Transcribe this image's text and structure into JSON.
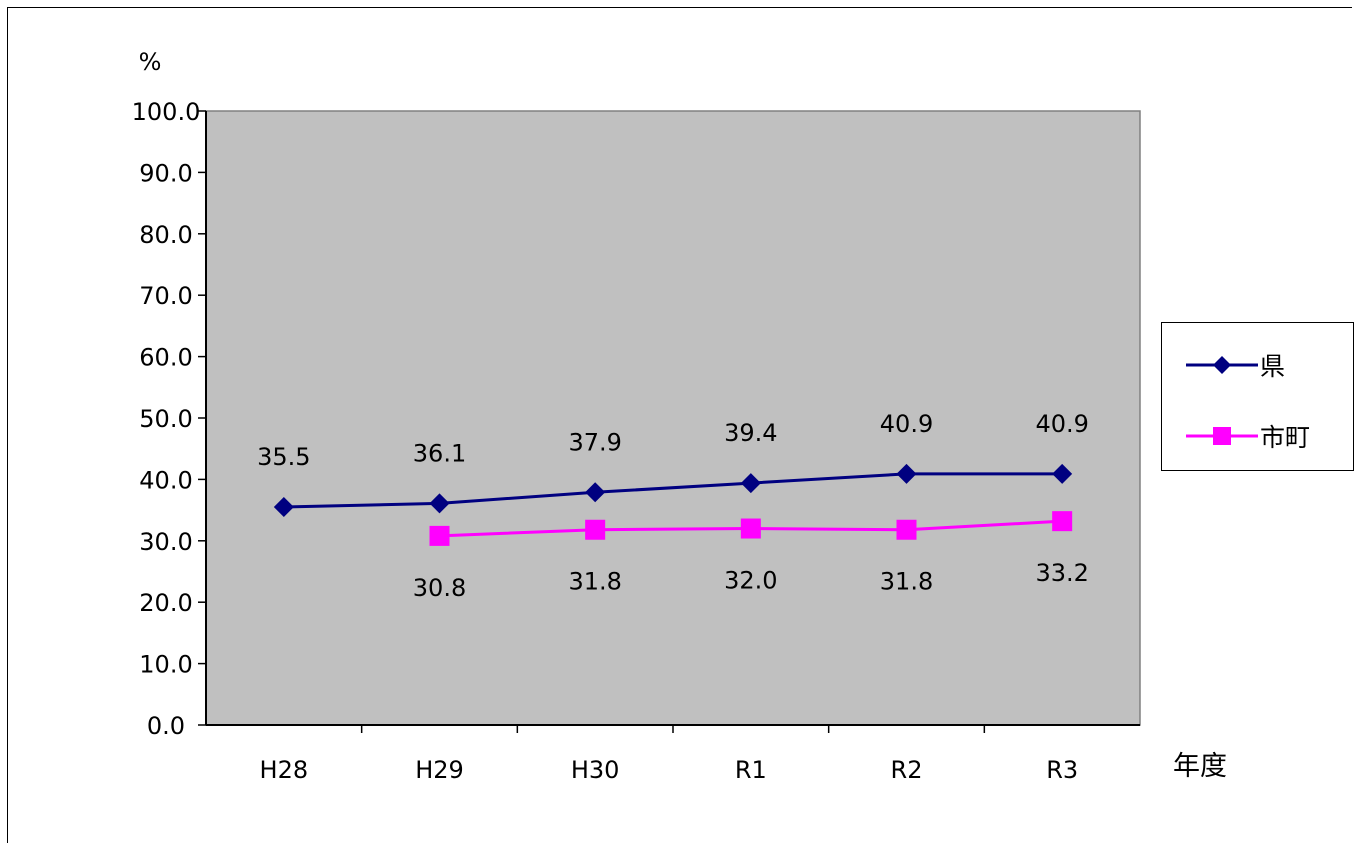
{
  "chart_data": {
    "type": "line",
    "title": "",
    "ylabel": "%",
    "xlabel": "年度",
    "ylim": [
      0,
      100
    ],
    "yticks": [
      "100.0",
      "90.0",
      "80.0",
      "70.0",
      "60.0",
      "50.0",
      "40.0",
      "30.0",
      "20.0",
      "10.0",
      "0.0"
    ],
    "categories": [
      "H28",
      "H29",
      "H30",
      "R1",
      "R2",
      "R3"
    ],
    "series": [
      {
        "name": "県",
        "values": [
          35.5,
          36.1,
          37.9,
          39.4,
          40.9,
          40.9
        ],
        "labels": [
          "35.5",
          "36.1",
          "37.9",
          "39.4",
          "40.9",
          "40.9"
        ],
        "color": "#000080",
        "marker": "diamond"
      },
      {
        "name": "市町",
        "values": [
          null,
          30.8,
          31.8,
          32.0,
          31.8,
          33.2
        ],
        "labels": [
          "",
          "30.8",
          "31.8",
          "32.0",
          "31.8",
          "33.2"
        ],
        "color": "#ff00ff",
        "marker": "square"
      }
    ],
    "grid": false,
    "plot_background": "#c0c0c0",
    "legend_position": "right"
  }
}
